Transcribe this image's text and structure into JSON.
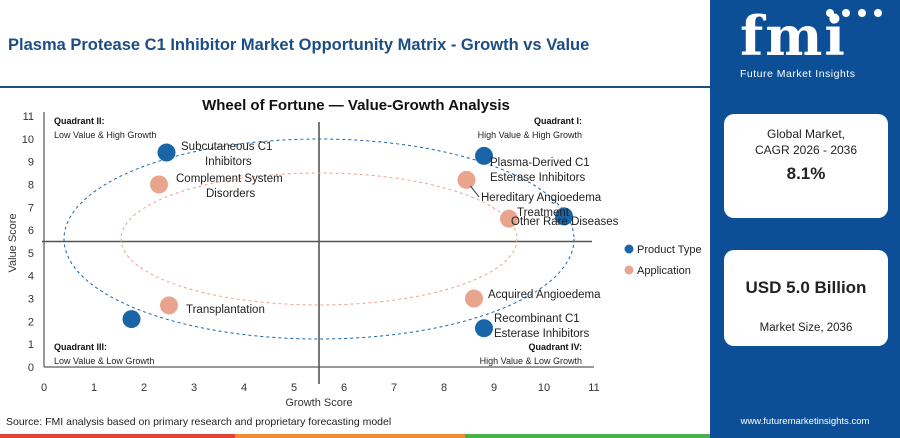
{
  "header": {
    "title": "Plasma Protease C1 Inhibitor Market Opportunity Matrix - Growth vs Value"
  },
  "brand": {
    "logo_text": "fmi",
    "logo_subtitle": "Future Market Insights",
    "website": "www.futuremarketinsights.com",
    "panel_color": "#0d4f96",
    "title_color": "#1c4d84"
  },
  "stats": {
    "cagr_label_line1": "Global Market,",
    "cagr_label_line2": "CAGR 2026 - 2036",
    "cagr_value": "8.1%",
    "size_value": "USD 5.0 Billion",
    "size_label": "Market Size, 2036"
  },
  "source": "Source: FMI analysis based on primary research and proprietary forecasting model",
  "chart_data": {
    "type": "scatter",
    "title": "Wheel of Fortune — Value-Growth Analysis",
    "xlabel": "Growth Score",
    "ylabel": "Value Score",
    "xlim": [
      0,
      11
    ],
    "ylim": [
      0,
      11
    ],
    "xticks": [
      0,
      1,
      2,
      3,
      4,
      5,
      6,
      7,
      8,
      9,
      10,
      11
    ],
    "yticks": [
      0,
      1,
      2,
      3,
      4,
      5,
      6,
      7,
      8,
      9,
      10,
      11
    ],
    "divider_x": 5.5,
    "divider_y": 5.5,
    "grid": false,
    "legend_position": "right",
    "series": [
      {
        "name": "Product Type",
        "color": "#1a65a8",
        "points": [
          {
            "x": 2.45,
            "y": 9.4,
            "label": "Subcutaneous C1 Inhibitors"
          },
          {
            "x": 8.8,
            "y": 9.25,
            "label": "Plasma-Derived C1 Esterase Inhibitors"
          },
          {
            "x": 10.4,
            "y": 6.6,
            "label": ""
          },
          {
            "x": 1.75,
            "y": 2.1,
            "label": ""
          },
          {
            "x": 8.8,
            "y": 1.7,
            "label": "Recombinant C1 Esterase Inhibitors"
          }
        ]
      },
      {
        "name": "Application",
        "color": "#e9a48d",
        "points": [
          {
            "x": 2.3,
            "y": 8.0,
            "label": "Complement System Disorders"
          },
          {
            "x": 8.45,
            "y": 8.2,
            "label": "Hereditary Angioedema Treatment"
          },
          {
            "x": 9.3,
            "y": 6.5,
            "label": "Other Rare Diseases"
          },
          {
            "x": 2.5,
            "y": 2.7,
            "label": "Transplantation"
          },
          {
            "x": 8.6,
            "y": 3.0,
            "label": "Acquired Angioedema"
          }
        ]
      }
    ],
    "quadrants": [
      {
        "title": "Quadrant II:",
        "subtitle": "Low Value & High Growth",
        "corner": "top-left"
      },
      {
        "title": "Quadrant I:",
        "subtitle": "High Value & High Growth",
        "corner": "top-right"
      },
      {
        "title": "Quadrant III:",
        "subtitle": "Low Value & Low Growth",
        "corner": "bottom-left"
      },
      {
        "title": "Quadrant IV:",
        "subtitle": "High Value & Low Growth",
        "corner": "bottom-right"
      }
    ]
  }
}
